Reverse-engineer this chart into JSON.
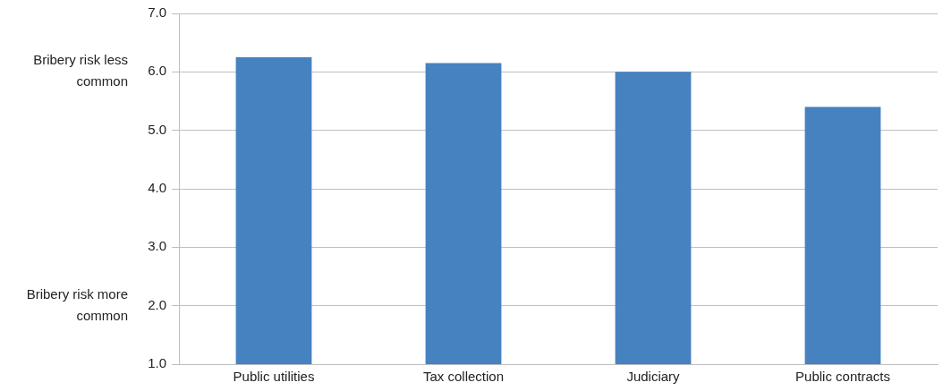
{
  "chart_data": {
    "type": "bar",
    "categories": [
      "Public utilities",
      "Tax collection",
      "Judiciary",
      "Public contracts"
    ],
    "values": [
      6.25,
      6.15,
      6.0,
      5.4
    ],
    "color": "#4682c0",
    "ylim": [
      1,
      7
    ],
    "yticks": [
      {
        "value": 1,
        "label": "1.0"
      },
      {
        "value": 2,
        "label": "2.0"
      },
      {
        "value": 3,
        "label": "3.0"
      },
      {
        "value": 4,
        "label": "4.0"
      },
      {
        "value": 5,
        "label": "5.0"
      },
      {
        "value": 6,
        "label": "6.0"
      },
      {
        "value": 7,
        "label": "7.0"
      }
    ],
    "grid": "y",
    "legend": false,
    "annotations": [
      "Bribery risk less common",
      "Bribery risk more common"
    ]
  }
}
